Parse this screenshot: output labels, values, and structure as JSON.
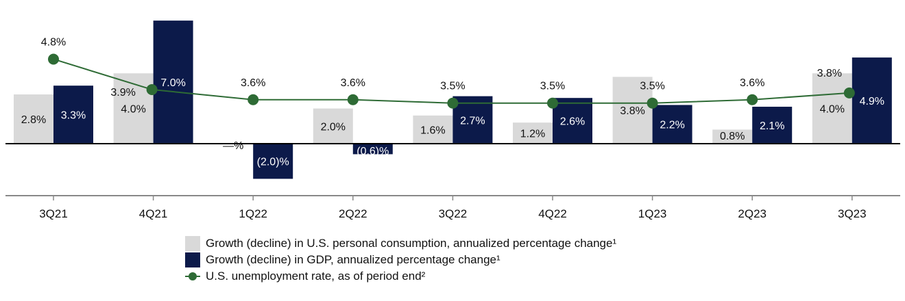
{
  "chart_data": {
    "type": "bar",
    "categories": [
      "3Q21",
      "4Q21",
      "1Q22",
      "2Q22",
      "3Q22",
      "4Q22",
      "1Q23",
      "2Q23",
      "3Q23"
    ],
    "series": [
      {
        "name": "Growth (decline) in U.S. personal consumption, annualized percentage change¹",
        "type": "bar",
        "color": "#d9d9d9",
        "values": [
          2.8,
          4.0,
          0.0,
          2.0,
          1.6,
          1.2,
          3.8,
          0.8,
          4.0
        ],
        "labels": [
          "2.8%",
          "4.0%",
          "—%",
          "2.0%",
          "1.6%",
          "1.2%",
          "3.8%",
          "0.8%",
          "4.0%"
        ]
      },
      {
        "name": "Growth (decline) in GDP, annualized percentage change¹",
        "type": "bar",
        "color": "#0c1a4a",
        "values": [
          3.3,
          7.0,
          -2.0,
          -0.6,
          2.7,
          2.6,
          2.2,
          2.1,
          4.9
        ],
        "labels": [
          "3.3%",
          "7.0%",
          "(2.0)%",
          "(0.6)%",
          "2.7%",
          "2.6%",
          "2.2%",
          "2.1%",
          "4.9%"
        ]
      },
      {
        "name": "U.S. unemployment rate, as of period end²",
        "type": "line",
        "color": "#2e6b35",
        "values": [
          4.8,
          3.9,
          3.6,
          3.6,
          3.5,
          3.5,
          3.5,
          3.6,
          3.8
        ],
        "labels": [
          "4.8%",
          "3.9%",
          "3.6%",
          "3.6%",
          "3.5%",
          "3.5%",
          "3.5%",
          "3.6%",
          "3.8%"
        ]
      }
    ],
    "legend_position": "bottom",
    "grid": false
  }
}
